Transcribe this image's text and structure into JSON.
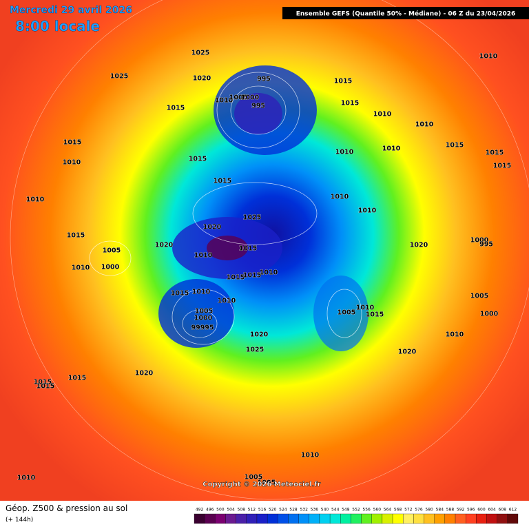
{
  "header": {
    "date": "Mercredi 29 avril 2026",
    "time": "8:00 locale",
    "model": "Ensemble GEFS  (Quantile 50% - Médiane) - 06 Z du 23/04/2026"
  },
  "pressure_labels": [
    "1025",
    "1010",
    "1025",
    "1020",
    "995",
    "1015",
    "1010",
    "1005",
    "1000",
    "995",
    "1015",
    "1015",
    "1010",
    "1010",
    "1015",
    "1015",
    "1015",
    "1010",
    "1010",
    "1010",
    "1015",
    "1015",
    "1015",
    "1010",
    "1010",
    "1010",
    "1025",
    "1020",
    "1015",
    "1000",
    "995",
    "1020",
    "1005",
    "1020",
    "1015",
    "1010",
    "1000",
    "1010",
    "1015",
    "1015",
    "1010",
    "1015",
    "1010",
    "1010",
    "1010",
    "1005",
    "1015",
    "1005",
    "1005",
    "1000",
    "99995",
    "1000",
    "1020",
    "1010",
    "1025",
    "1020",
    "1020",
    "1015",
    "1015",
    "1015",
    "1010",
    "1005",
    "1005",
    "1010"
  ],
  "copyright": "Copyright © 2026 Meteociel.fr",
  "footer": {
    "title": "Géop. Z500 & pression au sol",
    "lead": "(+ 144h)"
  },
  "colorbar": {
    "values": [
      492,
      496,
      500,
      504,
      508,
      512,
      516,
      520,
      524,
      528,
      532,
      536,
      540,
      544,
      548,
      552,
      556,
      560,
      564,
      568,
      572,
      576,
      580,
      584,
      588,
      592,
      596,
      600,
      604,
      608,
      612
    ],
    "colors": [
      "#3a0030",
      "#5a0050",
      "#7a0070",
      "#6a1a90",
      "#4a20a8",
      "#3020b8",
      "#1a20c8",
      "#0030d8",
      "#0050e8",
      "#0070f0",
      "#0090f8",
      "#00b0f8",
      "#00d0f0",
      "#00e8d8",
      "#00f0a0",
      "#20f060",
      "#60f020",
      "#a0f000",
      "#d8f000",
      "#ffff00",
      "#fff060",
      "#ffe040",
      "#ffc020",
      "#ffa000",
      "#ff8000",
      "#ff6020",
      "#ff4020",
      "#e82010",
      "#c01010",
      "#901010",
      "#600808"
    ]
  }
}
